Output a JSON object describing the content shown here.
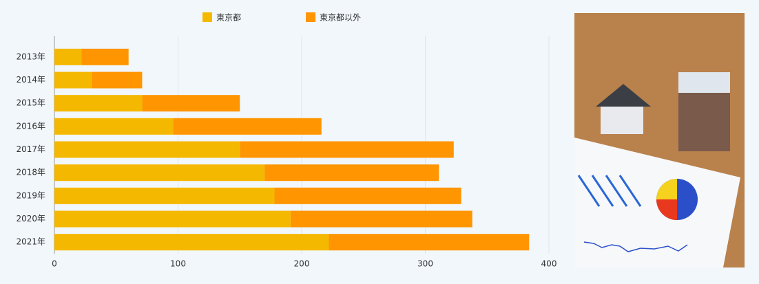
{
  "chart_data": {
    "type": "stacked-barh",
    "categories": [
      "2013年",
      "2014年",
      "2015年",
      "2016年",
      "2017年",
      "2018年",
      "2019年",
      "2020年",
      "2021年"
    ],
    "series": [
      {
        "name": "東京都",
        "color": "#f5b800",
        "values": [
          22,
          30,
          71,
          96,
          150,
          170,
          178,
          191,
          222
        ]
      },
      {
        "name": "東京都以外",
        "color": "#ff9500",
        "values": [
          38,
          41,
          79,
          120,
          173,
          141,
          151,
          147,
          162
        ]
      }
    ],
    "xlim": [
      0,
      400
    ],
    "xticks": [
      0,
      100,
      200,
      300,
      400
    ],
    "grid": true
  }
}
